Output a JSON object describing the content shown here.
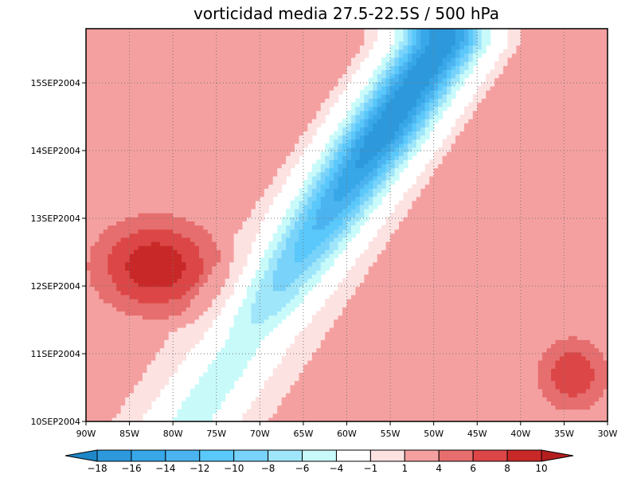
{
  "chart_data": {
    "type": "heatmap",
    "subtype": "hovmoller-filled-contour",
    "title": "vorticidad media 27.5-22.5S / 500 hPa",
    "xlabel": "",
    "ylabel": "",
    "x_range": [
      -90,
      -30
    ],
    "x_ticks": [
      -90,
      -85,
      -80,
      -75,
      -70,
      -65,
      -60,
      -55,
      -50,
      -45,
      -40,
      -35,
      -30
    ],
    "x_tick_labels": [
      "90W",
      "85W",
      "80W",
      "75W",
      "70W",
      "65W",
      "60W",
      "55W",
      "50W",
      "45W",
      "40W",
      "35W",
      "30W"
    ],
    "y_range_days": [
      0,
      5.8
    ],
    "y_ticks": [
      0,
      1,
      2,
      3,
      4,
      5
    ],
    "y_tick_labels": [
      "10SEP2004",
      "11SEP2004",
      "12SEP2004",
      "13SEP2004",
      "14SEP2004",
      "15SEP2004"
    ],
    "grid": "dotted",
    "colorbar": {
      "orientation": "horizontal",
      "levels": [
        "-18",
        "-16",
        "-14",
        "-12",
        "-10",
        "-8",
        "-6",
        "-4",
        "-1",
        "1",
        "4",
        "6",
        "8",
        "10"
      ],
      "colors": [
        "#1e87c8",
        "#2d99dc",
        "#37a7e8",
        "#4bb4f0",
        "#5ac8fa",
        "#78d2fa",
        "#a0e6fa",
        "#c8fafa",
        "#ffffff",
        "#fde2e2",
        "#f5a0a0",
        "#e66e6e",
        "#dc4646",
        "#c82828",
        "#b41e1e"
      ]
    },
    "features": [
      {
        "name": "negative-vorticity-trough-band",
        "start": {
          "lon": -78,
          "day": 0
        },
        "end": {
          "lon": -49,
          "day": 5.6
        },
        "min_value": -18
      },
      {
        "name": "positive-vorticity-west-cell",
        "center": {
          "lon": -82,
          "day": 2.3
        },
        "max_value": 8
      },
      {
        "name": "positive-vorticity-east-cell",
        "center": {
          "lon": -34,
          "day": 0.7
        },
        "max_value": 6
      }
    ]
  }
}
